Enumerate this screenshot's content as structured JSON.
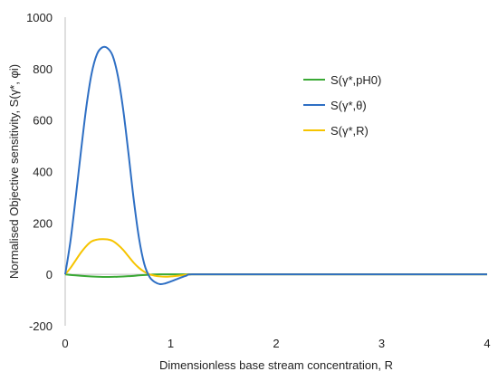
{
  "chart_data": {
    "type": "line",
    "title": "",
    "xlabel": "Dimensionless base stream concentration, R",
    "ylabel": "Normalised Objective sensitivity, S(γ*, φi)",
    "xlim": [
      0,
      4
    ],
    "ylim": [
      -200,
      1000
    ],
    "xticks": [
      "0",
      "1",
      "2",
      "3",
      "4"
    ],
    "yticks": [
      "-200",
      "0",
      "200",
      "400",
      "600",
      "800",
      "1000"
    ],
    "grid": false,
    "legend_position": "right",
    "series": [
      {
        "name": "S(γ*,pH0)",
        "color": "#3aa935",
        "x": [
          0,
          0.1,
          0.2,
          0.3,
          0.4,
          0.5,
          0.6,
          0.7,
          0.8,
          0.9,
          1.0,
          1.2,
          1.5,
          2,
          2.5,
          3,
          3.5,
          4
        ],
        "y": [
          0,
          -4,
          -7,
          -9,
          -10,
          -9,
          -7,
          -4,
          -1,
          0,
          0,
          0,
          0,
          0,
          0,
          0,
          0,
          0
        ]
      },
      {
        "name": "S(γ*,θ)",
        "color": "#2e6fc4",
        "x": [
          0,
          0.05,
          0.1,
          0.15,
          0.2,
          0.25,
          0.3,
          0.35,
          0.4,
          0.45,
          0.5,
          0.55,
          0.6,
          0.65,
          0.7,
          0.75,
          0.8,
          0.85,
          0.9,
          0.95,
          1.0,
          1.05,
          1.1,
          1.15,
          1.2,
          1.5,
          2,
          2.5,
          3,
          3.5,
          4
        ],
        "y": [
          0,
          130,
          300,
          480,
          650,
          780,
          855,
          882,
          880,
          850,
          770,
          640,
          470,
          290,
          140,
          40,
          -10,
          -30,
          -38,
          -35,
          -28,
          -20,
          -12,
          -5,
          0,
          0,
          0,
          0,
          0,
          0,
          0
        ]
      },
      {
        "name": "S(γ*,R)",
        "color": "#f6c400",
        "x": [
          0,
          0.05,
          0.1,
          0.15,
          0.2,
          0.25,
          0.3,
          0.35,
          0.4,
          0.45,
          0.5,
          0.55,
          0.6,
          0.65,
          0.7,
          0.75,
          0.8,
          0.85,
          0.9,
          0.95,
          1.0,
          1.05,
          1.1,
          1.2,
          1.5,
          2,
          2.5,
          3,
          3.5,
          4
        ],
        "y": [
          0,
          25,
          55,
          85,
          110,
          128,
          135,
          137,
          136,
          130,
          115,
          95,
          70,
          45,
          25,
          10,
          0,
          -5,
          -8,
          -9,
          -8,
          -6,
          -4,
          0,
          0,
          0,
          0,
          0,
          0,
          0
        ]
      }
    ]
  }
}
